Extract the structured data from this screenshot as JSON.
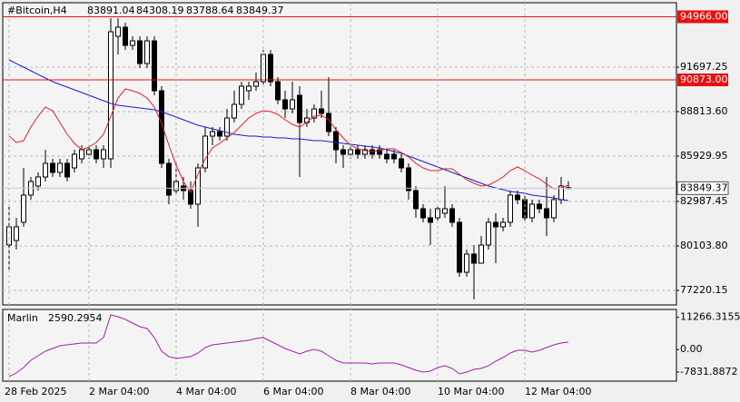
{
  "chart_data": [
    {
      "type": "candlestick",
      "title": "#Bitcoin,H4",
      "categories": [
        "28 Feb 2025",
        null,
        null,
        null,
        null,
        null,
        null,
        null,
        null,
        null,
        null,
        "2 Mar 04:00",
        null,
        null,
        null,
        null,
        null,
        null,
        null,
        null,
        null,
        null,
        null,
        "4 Mar 04:00",
        null,
        null,
        null,
        null,
        null,
        null,
        null,
        null,
        null,
        null,
        null,
        "6 Mar 04:00",
        null,
        null,
        null,
        null,
        null,
        null,
        null,
        null,
        null,
        null,
        null,
        "8 Mar 04:00",
        null,
        null,
        null,
        null,
        null,
        null,
        null,
        null,
        null,
        null,
        null,
        "10 Mar 04:00",
        null,
        null,
        null,
        null,
        null,
        null,
        null,
        null,
        null,
        null,
        null,
        "12 Mar 04:00",
        null,
        null,
        null,
        null,
        null,
        null
      ],
      "open": [
        80164,
        80458,
        81635,
        83400,
        83989,
        84577,
        85460,
        84872,
        85460,
        85166,
        85754,
        86049,
        86343,
        85754,
        85754,
        93699,
        94288,
        93110,
        93405,
        91933,
        93405,
        90168,
        85460,
        83695,
        83989,
        83695,
        82812,
        85166,
        87226,
        87520,
        87226,
        88403,
        89285,
        90168,
        90462,
        90756,
        92522,
        90756,
        89580,
        88991,
        89874,
        88108,
        88403,
        88991,
        88697,
        87520,
        86343,
        86049,
        86343,
        86049,
        86343,
        86343,
        86049,
        86049,
        85754,
        85166,
        83695,
        82518,
        81929,
        81929,
        82223,
        82518,
        81635,
        78398,
        79575,
        78987,
        80164,
        81635,
        81341,
        81635,
        83400,
        83106,
        81929,
        82812,
        82518,
        81929,
        83106,
        83891.04
      ],
      "high": [
        82812,
        81929,
        85166,
        84577,
        84872,
        86343,
        85754,
        85754,
        85754,
        86343,
        86637,
        86637,
        86637,
        86637,
        94876,
        94876,
        94582,
        93699,
        93699,
        93699,
        93699,
        90462,
        85754,
        85460,
        84577,
        84283,
        85460,
        87814,
        87814,
        87814,
        88991,
        90168,
        90756,
        90756,
        91345,
        92816,
        92816,
        91051,
        90168,
        90756,
        90462,
        88991,
        89285,
        90168,
        91051,
        87814,
        86637,
        86637,
        86637,
        86637,
        86637,
        86637,
        86343,
        86343,
        86049,
        85460,
        83989,
        82812,
        82518,
        82812,
        83989,
        82812,
        81929,
        79869,
        80164,
        80752,
        81929,
        82223,
        81929,
        83695,
        83695,
        83400,
        83106,
        83106,
        84577,
        83400,
        84577,
        84308.19
      ],
      "low": [
        78398,
        79869,
        81341,
        83106,
        83695,
        84283,
        84577,
        84577,
        84283,
        84872,
        85460,
        85754,
        85460,
        85166,
        85166,
        92522,
        92816,
        92816,
        91639,
        91639,
        89874,
        85166,
        82812,
        83400,
        83106,
        82518,
        81341,
        84872,
        86637,
        86931,
        86931,
        88108,
        88991,
        89580,
        90168,
        90462,
        90462,
        89285,
        88403,
        88697,
        84577,
        87814,
        88108,
        88403,
        87226,
        85460,
        85166,
        85754,
        85754,
        85754,
        85754,
        85754,
        85460,
        85460,
        84872,
        83106,
        81929,
        81635,
        80164,
        81635,
        81929,
        81341,
        78104,
        78104,
        76633,
        78987,
        79869,
        78987,
        81046,
        81341,
        82812,
        81635,
        81635,
        82223,
        80752,
        81635,
        82812,
        83788.64
      ],
      "close": [
        81341,
        81341,
        83400,
        84283,
        84577,
        85460,
        84872,
        85460,
        84577,
        86049,
        86343,
        86343,
        85754,
        86343,
        93993,
        94288,
        93110,
        93405,
        91933,
        93405,
        90168,
        85460,
        83400,
        84283,
        83695,
        82812,
        85166,
        87226,
        87520,
        87226,
        88403,
        89285,
        90462,
        90462,
        90756,
        92522,
        90756,
        89580,
        88991,
        89580,
        88108,
        88403,
        88991,
        88697,
        87520,
        86343,
        86049,
        86343,
        86049,
        86343,
        86049,
        86049,
        85754,
        85754,
        85166,
        83695,
        82518,
        81929,
        81635,
        82518,
        82518,
        81635,
        78398,
        79575,
        78987,
        80164,
        81635,
        81341,
        81635,
        83400,
        83106,
        81929,
        82812,
        82518,
        81929,
        83106,
        83989,
        83849.37
      ],
      "lines": [
        {
          "color": "#1a1ad0",
          "values": [
            92169,
            91933,
            91698,
            91463,
            91227,
            90992,
            90756,
            90580,
            90403,
            90227,
            90050,
            89874,
            89697,
            89521,
            89344,
            89227,
            89168,
            89109,
            89050,
            88991,
            88932,
            88814,
            88638,
            88461,
            88285,
            88108,
            87932,
            87814,
            87696,
            87579,
            87461,
            87343,
            87284,
            87226,
            87226,
            87167,
            87167,
            87108,
            87108,
            87049,
            87049,
            86990,
            86931,
            86931,
            86872,
            86814,
            86755,
            86696,
            86637,
            86578,
            86519,
            86460,
            86343,
            86225,
            86107,
            85931,
            85754,
            85578,
            85401,
            85225,
            85048,
            84872,
            84695,
            84519,
            84342,
            84165,
            83989,
            83871,
            83753,
            83636,
            83577,
            83518,
            83400,
            83341,
            83282,
            83224,
            83106,
            83047
          ]
        },
        {
          "color": "#e0202a",
          "values": [
            87226,
            86814,
            86931,
            87814,
            88520,
            89109,
            88873,
            88108,
            87343,
            86755,
            86343,
            86519,
            86814,
            87343,
            88520,
            89697,
            90286,
            90168,
            89991,
            89697,
            89109,
            88049,
            86637,
            85342,
            84283,
            83577,
            84754,
            85754,
            86460,
            86755,
            87108,
            87461,
            87932,
            88403,
            88697,
            88873,
            88814,
            88638,
            88285,
            87991,
            87814,
            88108,
            88520,
            88579,
            88285,
            87637,
            87108,
            86637,
            86402,
            86284,
            86225,
            86284,
            86402,
            86402,
            86166,
            85872,
            85460,
            85166,
            84989,
            84989,
            85107,
            85107,
            84754,
            84401,
            84165,
            83989,
            84048,
            84283,
            84577,
            84989,
            85225,
            84989,
            84695,
            84460,
            84106,
            83812,
            83871,
            84048
          ]
        }
      ],
      "hlines": [
        {
          "value": 94966,
          "label": "94966.00",
          "color": "#e81010"
        },
        {
          "value": 90873,
          "label": "90873.00",
          "color": "#e81010"
        }
      ],
      "ylim": [
        76279,
        95877
      ],
      "yticks": [
        91697.25,
        {
          "value": 88813.6,
          "label": "88813.60"
        },
        85929.95,
        82987.45,
        {
          "value": 80103.8,
          "label": "80103.80"
        },
        77220.15
      ],
      "grid": true
    },
    {
      "type": "line",
      "title": "Marlin",
      "color": "#a020a8",
      "values": [
        -9421,
        -8155,
        -6256,
        -3724,
        -2142,
        -559,
        391,
        1340,
        1656,
        1973,
        2290,
        2290,
        2290,
        4188,
        12101,
        11468,
        10518,
        9252,
        7986,
        7353,
        4188,
        -559,
        -2458,
        -3091,
        -2775,
        -2458,
        -1192,
        707,
        1656,
        1973,
        2290,
        2607,
        2924,
        3240,
        3872,
        4188,
        2924,
        1656,
        391,
        -559,
        -1508,
        -559,
        74,
        -559,
        -2142,
        -3724,
        -4674,
        -4674,
        -4674,
        -4674,
        -4990,
        -4674,
        -4674,
        -4674,
        -5307,
        -6256,
        -7206,
        -7838,
        -7522,
        -6256,
        -5623,
        -6573,
        -8472,
        -7838,
        -6889,
        -6573,
        -5623,
        -4041,
        -2775,
        -1192,
        -243,
        -243,
        -876,
        -243,
        707,
        1656,
        2290,
        2590.2954
      ],
      "ylim": [
        -11000,
        14000
      ],
      "yticks": [
        11266.3155,
        {
          "value": 0,
          "label": "0.00"
        },
        -7831.8872
      ]
    }
  ]
}
